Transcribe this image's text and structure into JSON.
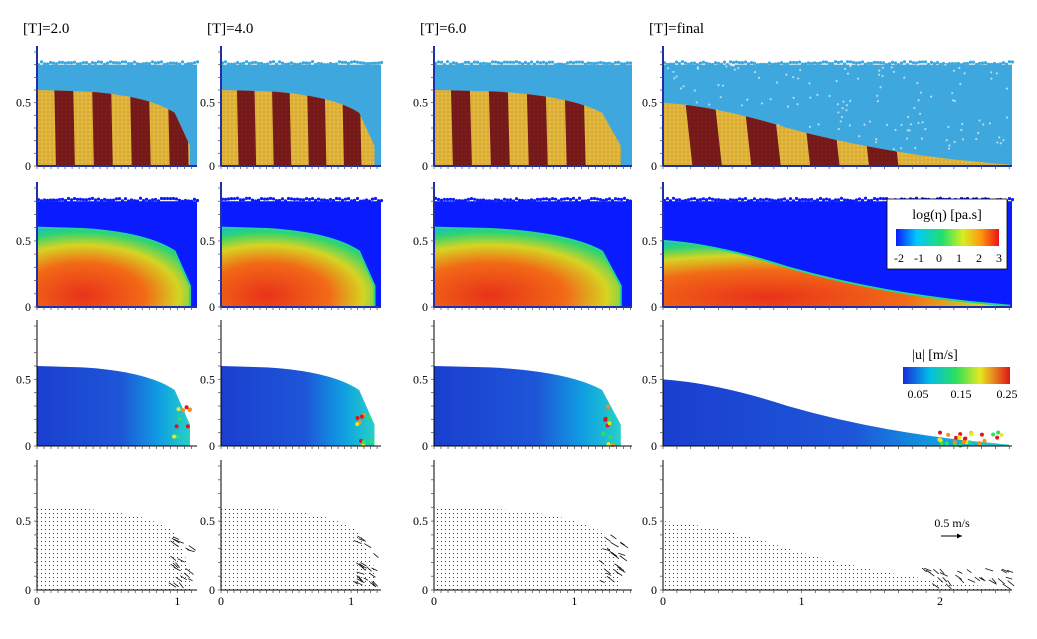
{
  "columns": [
    {
      "title": "[T]=2.0",
      "front": 1.09,
      "xlim": [
        0,
        1.14
      ],
      "xticks": [
        {
          "v": 0,
          "label": "0"
        },
        {
          "v": 1,
          "label": "1"
        }
      ]
    },
    {
      "title": "[T]=4.0",
      "front": 1.18,
      "xlim": [
        0,
        1.23
      ],
      "xticks": [
        {
          "v": 0,
          "label": "0"
        },
        {
          "v": 1,
          "label": "1"
        }
      ]
    },
    {
      "title": "[T]=6.0",
      "front": 1.33,
      "xlim": [
        0,
        1.41
      ],
      "xticks": [
        {
          "v": 0,
          "label": "0"
        },
        {
          "v": 1,
          "label": "1"
        }
      ]
    },
    {
      "title": "[T]=final",
      "front": 2.5,
      "xlim": [
        0,
        2.52
      ],
      "xticks": [
        {
          "v": 0,
          "label": "0"
        },
        {
          "v": 1,
          "label": "1"
        },
        {
          "v": 2,
          "label": "2"
        }
      ]
    }
  ],
  "rows": [
    {
      "type": "material",
      "colors": {
        "water": "#3ea7dd",
        "sand_light": "#e8bb3c",
        "sand_dark": "#7b1b1b"
      }
    },
    {
      "type": "viscosity",
      "colorbar": {
        "title": "log(η) [pa.s]",
        "ticks": [
          "-2",
          "-1",
          "0",
          "1",
          "2",
          "3"
        ]
      }
    },
    {
      "type": "velocity",
      "colorbar": {
        "title": "|u| [m/s]",
        "ticks": [
          "0.05",
          "0.15",
          "0.25"
        ]
      }
    },
    {
      "type": "vectors",
      "scale_label": "0.5 m/s"
    }
  ],
  "yticks": [
    {
      "v": 0,
      "label": "0"
    },
    {
      "v": 0.5,
      "label": "0.5"
    }
  ],
  "ylim": [
    0,
    0.9
  ],
  "axis_color": "#1f2fa8"
}
